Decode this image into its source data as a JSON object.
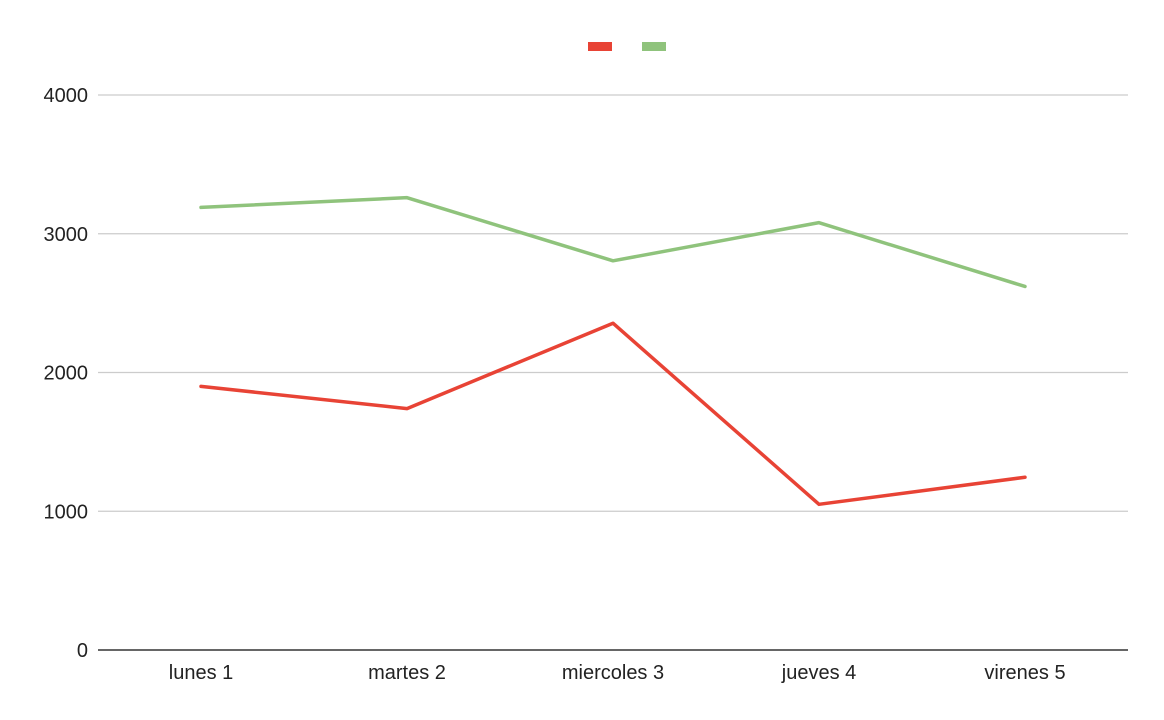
{
  "chart_data": {
    "type": "line",
    "categories": [
      "lunes 1",
      "martes 2",
      "miercoles 3",
      "jueves 4",
      "virenes 5"
    ],
    "series": [
      {
        "values": [
          1900,
          1740,
          2355,
          1050,
          1245
        ],
        "color": "#e84335"
      },
      {
        "values": [
          3190,
          3260,
          2805,
          3080,
          2620
        ],
        "color": "#8fc37c"
      }
    ],
    "ylim": [
      0,
      4000
    ],
    "yticks": [
      0,
      1000,
      2000,
      3000,
      4000
    ],
    "grid": true,
    "legend_position": "top-center",
    "gridline_color": "#cccccc",
    "axis_color": "#333333"
  }
}
